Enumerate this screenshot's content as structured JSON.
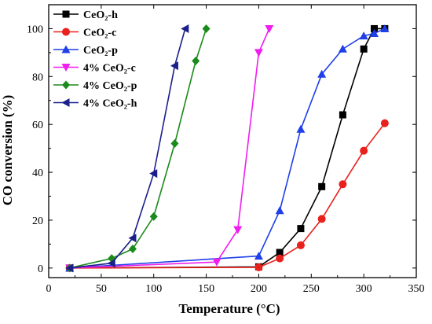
{
  "chart_data": {
    "type": "line",
    "xlabel": "Temperature (°C)",
    "ylabel": "CO conversion (%)",
    "xlim": [
      0,
      350
    ],
    "ylim": [
      -4,
      110
    ],
    "xticks": [
      0,
      50,
      100,
      150,
      200,
      250,
      300,
      350
    ],
    "yticks": [
      0,
      20,
      40,
      60,
      80,
      100
    ],
    "grid": false,
    "legend_position": "top-left",
    "series": [
      {
        "name": "CeO₂-h",
        "color": "#000000",
        "marker": "square",
        "x": [
          20,
          200,
          220,
          240,
          260,
          280,
          300,
          310,
          320
        ],
        "y": [
          0,
          0.5,
          6.5,
          16.5,
          34,
          64,
          91.5,
          100,
          100
        ]
      },
      {
        "name": "CeO₂-c",
        "color": "#e8211d",
        "marker": "circle",
        "x": [
          20,
          200,
          220,
          240,
          260,
          280,
          300,
          320
        ],
        "y": [
          0,
          0.3,
          4,
          9.5,
          20.5,
          35,
          49,
          60.5
        ]
      },
      {
        "name": "CeO₂-p",
        "color": "#1f3fe8",
        "marker": "triangle-up",
        "x": [
          20,
          200,
          220,
          240,
          260,
          280,
          300,
          310,
          320
        ],
        "y": [
          0,
          5,
          24,
          58,
          81,
          91.5,
          97,
          98,
          100
        ]
      },
      {
        "name": "4% CeO₂-c",
        "color": "#f01cf0",
        "marker": "triangle-down",
        "x": [
          20,
          160,
          180,
          200,
          210
        ],
        "y": [
          0,
          2.5,
          16,
          90,
          100
        ]
      },
      {
        "name": "4% CeO₂-p",
        "color": "#1a8a1a",
        "marker": "diamond",
        "x": [
          20,
          60,
          80,
          100,
          120,
          140,
          150
        ],
        "y": [
          0,
          4,
          8,
          21.5,
          52,
          86.5,
          100
        ]
      },
      {
        "name": "4% CeO₂-h",
        "color": "#1b1f8a",
        "marker": "triangle-left",
        "x": [
          20,
          60,
          80,
          100,
          120,
          130
        ],
        "y": [
          0,
          2,
          12.5,
          39.5,
          84.5,
          100
        ]
      }
    ]
  }
}
